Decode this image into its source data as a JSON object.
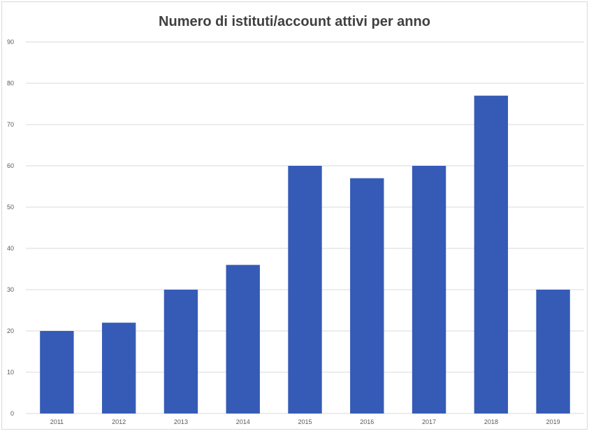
{
  "chart_data": {
    "type": "bar",
    "title": "Numero di istituti/account attivi per anno",
    "xlabel": "",
    "ylabel": "",
    "categories": [
      "2011",
      "2012",
      "2013",
      "2014",
      "2015",
      "2016",
      "2017",
      "2018",
      "2019"
    ],
    "values": [
      20,
      22,
      30,
      36,
      60,
      57,
      60,
      77,
      30
    ],
    "ylim": [
      0,
      90
    ],
    "yticks": [
      0,
      10,
      20,
      30,
      40,
      50,
      60,
      70,
      80,
      90
    ],
    "grid": true,
    "legend": "none",
    "bar_color": "#355bb7",
    "gridline_color": "#d9d9d9"
  }
}
